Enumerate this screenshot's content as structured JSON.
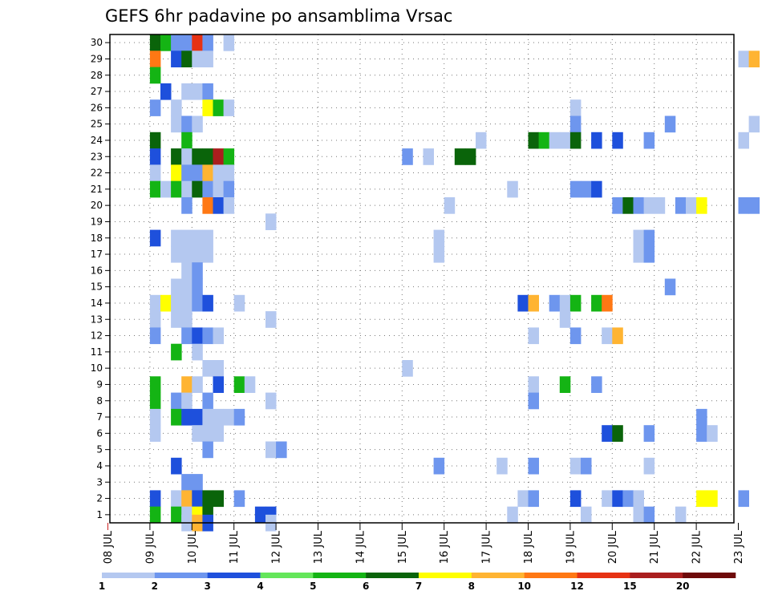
{
  "chart_data": {
    "type": "heatmap",
    "title": "GEFS 6hr padavine po ansamblima Vrsac",
    "xlabel": "",
    "ylabel": "",
    "x_tick_labels": [
      "08 JUL",
      "09 JUL",
      "10 JUL",
      "11 JUL",
      "12 JUL",
      "13 JUL",
      "14 JUL",
      "15 JUL",
      "16 JUL",
      "17 JUL",
      "18 JUL",
      "19 JUL",
      "20 JUL",
      "21 JUL",
      "22 JUL",
      "23 JUL"
    ],
    "y_tick_labels": [
      "1",
      "2",
      "3",
      "4",
      "5",
      "6",
      "7",
      "8",
      "9",
      "10",
      "11",
      "12",
      "13",
      "14",
      "15",
      "16",
      "17",
      "18",
      "19",
      "20",
      "21",
      "22",
      "23",
      "24",
      "25",
      "26",
      "27",
      "28",
      "29",
      "30"
    ],
    "members_range": [
      1,
      30
    ],
    "time_step_hours": 6,
    "grid": true,
    "legend": {
      "position": "bottom",
      "labels": [
        "1",
        "2",
        "3",
        "4",
        "5",
        "6",
        "7",
        "8",
        "10",
        "12",
        "15",
        "20"
      ],
      "colors": [
        "#b4c8f0",
        "#6e96ee",
        "#1e50dc",
        "#64e65a",
        "#14b414",
        "#0a640a",
        "#ffff00",
        "#ffb432",
        "#ff7814",
        "#e63214",
        "#aa1e1e",
        "#6e0a0a"
      ]
    },
    "cells": [
      {
        "m": 30,
        "t": "09 JUL 00Z",
        "v": 6
      },
      {
        "m": 30,
        "t": "09 JUL 06Z",
        "v": 5
      },
      {
        "m": 30,
        "t": "09 JUL 12Z",
        "v": 2
      },
      {
        "m": 30,
        "t": "09 JUL 18Z",
        "v": 2
      },
      {
        "m": 30,
        "t": "10 JUL 00Z",
        "v": 13
      },
      {
        "m": 30,
        "t": "10 JUL 06Z",
        "v": 2
      },
      {
        "m": 30,
        "t": "10 JUL 18Z",
        "v": 1
      },
      {
        "m": 29,
        "t": "09 JUL 00Z",
        "v": 10
      },
      {
        "m": 29,
        "t": "09 JUL 12Z",
        "v": 3
      },
      {
        "m": 29,
        "t": "09 JUL 18Z",
        "v": 6
      },
      {
        "m": 29,
        "t": "10 JUL 00Z",
        "v": 1
      },
      {
        "m": 29,
        "t": "10 JUL 06Z",
        "v": 1
      },
      {
        "m": 29,
        "t": "23 JUL 00Z",
        "v": 1
      },
      {
        "m": 29,
        "t": "23 JUL 06Z",
        "v": 8
      },
      {
        "m": 28,
        "t": "09 JUL 00Z",
        "v": 5
      },
      {
        "m": 27,
        "t": "09 JUL 06Z",
        "v": 3
      },
      {
        "m": 27,
        "t": "09 JUL 18Z",
        "v": 1
      },
      {
        "m": 27,
        "t": "10 JUL 00Z",
        "v": 1
      },
      {
        "m": 27,
        "t": "10 JUL 06Z",
        "v": 2
      },
      {
        "m": 26,
        "t": "09 JUL 00Z",
        "v": 2
      },
      {
        "m": 26,
        "t": "09 JUL 12Z",
        "v": 1
      },
      {
        "m": 26,
        "t": "10 JUL 06Z",
        "v": 7
      },
      {
        "m": 26,
        "t": "10 JUL 12Z",
        "v": 5
      },
      {
        "m": 26,
        "t": "10 JUL 18Z",
        "v": 1
      },
      {
        "m": 26,
        "t": "19 JUL 00Z",
        "v": 1
      },
      {
        "m": 25,
        "t": "09 JUL 12Z",
        "v": 1
      },
      {
        "m": 25,
        "t": "09 JUL 18Z",
        "v": 2
      },
      {
        "m": 25,
        "t": "10 JUL 00Z",
        "v": 1
      },
      {
        "m": 25,
        "t": "19 JUL 00Z",
        "v": 2
      },
      {
        "m": 25,
        "t": "21 JUL 06Z",
        "v": 2
      },
      {
        "m": 25,
        "t": "23 JUL 06Z",
        "v": 1
      },
      {
        "m": 24,
        "t": "09 JUL 00Z",
        "v": 6
      },
      {
        "m": 24,
        "t": "09 JUL 18Z",
        "v": 5
      },
      {
        "m": 24,
        "t": "16 JUL 18Z",
        "v": 1
      },
      {
        "m": 24,
        "t": "18 JUL 00Z",
        "v": 6
      },
      {
        "m": 24,
        "t": "18 JUL 06Z",
        "v": 5
      },
      {
        "m": 24,
        "t": "18 JUL 12Z",
        "v": 1
      },
      {
        "m": 24,
        "t": "18 JUL 18Z",
        "v": 1
      },
      {
        "m": 24,
        "t": "19 JUL 00Z",
        "v": 6
      },
      {
        "m": 24,
        "t": "19 JUL 12Z",
        "v": 3
      },
      {
        "m": 24,
        "t": "20 JUL 00Z",
        "v": 3
      },
      {
        "m": 24,
        "t": "20 JUL 18Z",
        "v": 2
      },
      {
        "m": 24,
        "t": "23 JUL 00Z",
        "v": 1
      },
      {
        "m": 23,
        "t": "09 JUL 00Z",
        "v": 3
      },
      {
        "m": 23,
        "t": "09 JUL 12Z",
        "v": 6
      },
      {
        "m": 23,
        "t": "09 JUL 18Z",
        "v": 1
      },
      {
        "m": 23,
        "t": "10 JUL 00Z",
        "v": 6
      },
      {
        "m": 23,
        "t": "10 JUL 06Z",
        "v": 6
      },
      {
        "m": 23,
        "t": "10 JUL 12Z",
        "v": 15
      },
      {
        "m": 23,
        "t": "10 JUL 18Z",
        "v": 5
      },
      {
        "m": 23,
        "t": "15 JUL 00Z",
        "v": 2
      },
      {
        "m": 23,
        "t": "15 JUL 12Z",
        "v": 1
      },
      {
        "m": 23,
        "t": "16 JUL 06Z",
        "v": 6
      },
      {
        "m": 23,
        "t": "16 JUL 12Z",
        "v": 6
      },
      {
        "m": 22,
        "t": "09 JUL 00Z",
        "v": 1
      },
      {
        "m": 22,
        "t": "09 JUL 12Z",
        "v": 7
      },
      {
        "m": 22,
        "t": "09 JUL 18Z",
        "v": 2
      },
      {
        "m": 22,
        "t": "10 JUL 00Z",
        "v": 2
      },
      {
        "m": 22,
        "t": "10 JUL 06Z",
        "v": 8
      },
      {
        "m": 22,
        "t": "10 JUL 12Z",
        "v": 1
      },
      {
        "m": 22,
        "t": "10 JUL 18Z",
        "v": 1
      },
      {
        "m": 21,
        "t": "09 JUL 00Z",
        "v": 5
      },
      {
        "m": 21,
        "t": "09 JUL 06Z",
        "v": 1
      },
      {
        "m": 21,
        "t": "09 JUL 12Z",
        "v": 5
      },
      {
        "m": 21,
        "t": "09 JUL 18Z",
        "v": 1
      },
      {
        "m": 21,
        "t": "10 JUL 00Z",
        "v": 6
      },
      {
        "m": 21,
        "t": "10 JUL 06Z",
        "v": 2
      },
      {
        "m": 21,
        "t": "10 JUL 12Z",
        "v": 1
      },
      {
        "m": 21,
        "t": "10 JUL 18Z",
        "v": 2
      },
      {
        "m": 21,
        "t": "17 JUL 12Z",
        "v": 1
      },
      {
        "m": 21,
        "t": "19 JUL 00Z",
        "v": 2
      },
      {
        "m": 21,
        "t": "19 JUL 06Z",
        "v": 2
      },
      {
        "m": 21,
        "t": "19 JUL 12Z",
        "v": 3
      },
      {
        "m": 20,
        "t": "09 JUL 18Z",
        "v": 2
      },
      {
        "m": 20,
        "t": "10 JUL 06Z",
        "v": 10
      },
      {
        "m": 20,
        "t": "10 JUL 12Z",
        "v": 3
      },
      {
        "m": 20,
        "t": "10 JUL 18Z",
        "v": 1
      },
      {
        "m": 20,
        "t": "16 JUL 00Z",
        "v": 1
      },
      {
        "m": 20,
        "t": "20 JUL 00Z",
        "v": 2
      },
      {
        "m": 20,
        "t": "20 JUL 06Z",
        "v": 6
      },
      {
        "m": 20,
        "t": "20 JUL 12Z",
        "v": 2
      },
      {
        "m": 20,
        "t": "20 JUL 18Z",
        "v": 1
      },
      {
        "m": 20,
        "t": "21 JUL 00Z",
        "v": 1
      },
      {
        "m": 20,
        "t": "21 JUL 12Z",
        "v": 2
      },
      {
        "m": 20,
        "t": "21 JUL 18Z",
        "v": 1
      },
      {
        "m": 20,
        "t": "22 JUL 00Z",
        "v": 7
      },
      {
        "m": 20,
        "t": "23 JUL 00Z",
        "v": 2
      },
      {
        "m": 20,
        "t": "23 JUL 06Z",
        "v": 2
      },
      {
        "m": 19,
        "t": "11 JUL 18Z",
        "v": 1
      },
      {
        "m": 18,
        "t": "09 JUL 00Z",
        "v": 3
      },
      {
        "m": 18,
        "t": "09 JUL 12Z",
        "v": 1
      },
      {
        "m": 18,
        "t": "09 JUL 18Z",
        "v": 1
      },
      {
        "m": 18,
        "t": "10 JUL 00Z",
        "v": 1
      },
      {
        "m": 18,
        "t": "10 JUL 06Z",
        "v": 1
      },
      {
        "m": 18,
        "t": "15 JUL 18Z",
        "v": 1
      },
      {
        "m": 18,
        "t": "20 JUL 12Z",
        "v": 1
      },
      {
        "m": 18,
        "t": "20 JUL 18Z",
        "v": 2
      },
      {
        "m": 17,
        "t": "09 JUL 12Z",
        "v": 1
      },
      {
        "m": 17,
        "t": "09 JUL 18Z",
        "v": 1
      },
      {
        "m": 17,
        "t": "10 JUL 00Z",
        "v": 1
      },
      {
        "m": 17,
        "t": "10 JUL 06Z",
        "v": 1
      },
      {
        "m": 17,
        "t": "15 JUL 18Z",
        "v": 1
      },
      {
        "m": 17,
        "t": "20 JUL 12Z",
        "v": 1
      },
      {
        "m": 17,
        "t": "20 JUL 18Z",
        "v": 2
      },
      {
        "m": 16,
        "t": "09 JUL 18Z",
        "v": 1
      },
      {
        "m": 16,
        "t": "10 JUL 00Z",
        "v": 2
      },
      {
        "m": 15,
        "t": "09 JUL 12Z",
        "v": 1
      },
      {
        "m": 15,
        "t": "09 JUL 18Z",
        "v": 1
      },
      {
        "m": 15,
        "t": "10 JUL 00Z",
        "v": 2
      },
      {
        "m": 15,
        "t": "21 JUL 06Z",
        "v": 2
      },
      {
        "m": 14,
        "t": "09 JUL 00Z",
        "v": 1
      },
      {
        "m": 14,
        "t": "09 JUL 06Z",
        "v": 7
      },
      {
        "m": 14,
        "t": "09 JUL 12Z",
        "v": 1
      },
      {
        "m": 14,
        "t": "09 JUL 18Z",
        "v": 1
      },
      {
        "m": 14,
        "t": "10 JUL 00Z",
        "v": 2
      },
      {
        "m": 14,
        "t": "10 JUL 06Z",
        "v": 3
      },
      {
        "m": 14,
        "t": "11 JUL 00Z",
        "v": 1
      },
      {
        "m": 14,
        "t": "17 JUL 18Z",
        "v": 3
      },
      {
        "m": 14,
        "t": "18 JUL 00Z",
        "v": 8
      },
      {
        "m": 14,
        "t": "18 JUL 12Z",
        "v": 2
      },
      {
        "m": 14,
        "t": "18 JUL 18Z",
        "v": 1
      },
      {
        "m": 14,
        "t": "19 JUL 00Z",
        "v": 5
      },
      {
        "m": 14,
        "t": "19 JUL 12Z",
        "v": 5
      },
      {
        "m": 14,
        "t": "19 JUL 18Z",
        "v": 10
      },
      {
        "m": 13,
        "t": "09 JUL 00Z",
        "v": 1
      },
      {
        "m": 13,
        "t": "09 JUL 12Z",
        "v": 1
      },
      {
        "m": 13,
        "t": "09 JUL 18Z",
        "v": 1
      },
      {
        "m": 13,
        "t": "11 JUL 18Z",
        "v": 1
      },
      {
        "m": 13,
        "t": "18 JUL 18Z",
        "v": 1
      },
      {
        "m": 12,
        "t": "09 JUL 00Z",
        "v": 2
      },
      {
        "m": 12,
        "t": "09 JUL 18Z",
        "v": 2
      },
      {
        "m": 12,
        "t": "10 JUL 00Z",
        "v": 3
      },
      {
        "m": 12,
        "t": "10 JUL 06Z",
        "v": 2
      },
      {
        "m": 12,
        "t": "10 JUL 12Z",
        "v": 1
      },
      {
        "m": 12,
        "t": "18 JUL 00Z",
        "v": 1
      },
      {
        "m": 12,
        "t": "19 JUL 00Z",
        "v": 2
      },
      {
        "m": 12,
        "t": "19 JUL 18Z",
        "v": 1
      },
      {
        "m": 12,
        "t": "20 JUL 00Z",
        "v": 8
      },
      {
        "m": 11,
        "t": "09 JUL 12Z",
        "v": 5
      },
      {
        "m": 11,
        "t": "10 JUL 00Z",
        "v": 1
      },
      {
        "m": 10,
        "t": "10 JUL 06Z",
        "v": 1
      },
      {
        "m": 10,
        "t": "10 JUL 12Z",
        "v": 1
      },
      {
        "m": 10,
        "t": "15 JUL 00Z",
        "v": 1
      },
      {
        "m": 9,
        "t": "09 JUL 00Z",
        "v": 5
      },
      {
        "m": 9,
        "t": "09 JUL 18Z",
        "v": 8
      },
      {
        "m": 9,
        "t": "10 JUL 00Z",
        "v": 1
      },
      {
        "m": 9,
        "t": "10 JUL 12Z",
        "v": 3
      },
      {
        "m": 9,
        "t": "11 JUL 00Z",
        "v": 5
      },
      {
        "m": 9,
        "t": "11 JUL 06Z",
        "v": 1
      },
      {
        "m": 9,
        "t": "18 JUL 00Z",
        "v": 1
      },
      {
        "m": 9,
        "t": "18 JUL 18Z",
        "v": 5
      },
      {
        "m": 9,
        "t": "19 JUL 12Z",
        "v": 2
      },
      {
        "m": 8,
        "t": "09 JUL 00Z",
        "v": 5
      },
      {
        "m": 8,
        "t": "09 JUL 12Z",
        "v": 2
      },
      {
        "m": 8,
        "t": "09 JUL 18Z",
        "v": 1
      },
      {
        "m": 8,
        "t": "10 JUL 06Z",
        "v": 2
      },
      {
        "m": 8,
        "t": "11 JUL 18Z",
        "v": 1
      },
      {
        "m": 8,
        "t": "18 JUL 00Z",
        "v": 2
      },
      {
        "m": 7,
        "t": "09 JUL 00Z",
        "v": 1
      },
      {
        "m": 7,
        "t": "09 JUL 12Z",
        "v": 5
      },
      {
        "m": 7,
        "t": "09 JUL 18Z",
        "v": 3
      },
      {
        "m": 7,
        "t": "10 JUL 00Z",
        "v": 3
      },
      {
        "m": 7,
        "t": "10 JUL 06Z",
        "v": 1
      },
      {
        "m": 7,
        "t": "10 JUL 12Z",
        "v": 1
      },
      {
        "m": 7,
        "t": "10 JUL 18Z",
        "v": 1
      },
      {
        "m": 7,
        "t": "11 JUL 00Z",
        "v": 2
      },
      {
        "m": 7,
        "t": "22 JUL 00Z",
        "v": 2
      },
      {
        "m": 6,
        "t": "09 JUL 00Z",
        "v": 1
      },
      {
        "m": 6,
        "t": "10 JUL 00Z",
        "v": 1
      },
      {
        "m": 6,
        "t": "10 JUL 06Z",
        "v": 1
      },
      {
        "m": 6,
        "t": "10 JUL 12Z",
        "v": 1
      },
      {
        "m": 6,
        "t": "19 JUL 18Z",
        "v": 3
      },
      {
        "m": 6,
        "t": "20 JUL 00Z",
        "v": 6
      },
      {
        "m": 6,
        "t": "20 JUL 18Z",
        "v": 2
      },
      {
        "m": 6,
        "t": "22 JUL 00Z",
        "v": 2
      },
      {
        "m": 6,
        "t": "22 JUL 06Z",
        "v": 1
      },
      {
        "m": 5,
        "t": "10 JUL 06Z",
        "v": 2
      },
      {
        "m": 5,
        "t": "11 JUL 18Z",
        "v": 1
      },
      {
        "m": 5,
        "t": "12 JUL 00Z",
        "v": 2
      },
      {
        "m": 4,
        "t": "09 JUL 12Z",
        "v": 3
      },
      {
        "m": 4,
        "t": "15 JUL 18Z",
        "v": 2
      },
      {
        "m": 4,
        "t": "17 JUL 06Z",
        "v": 1
      },
      {
        "m": 4,
        "t": "18 JUL 00Z",
        "v": 2
      },
      {
        "m": 4,
        "t": "19 JUL 00Z",
        "v": 1
      },
      {
        "m": 4,
        "t": "19 JUL 06Z",
        "v": 2
      },
      {
        "m": 4,
        "t": "20 JUL 18Z",
        "v": 1
      },
      {
        "m": 3,
        "t": "09 JUL 18Z",
        "v": 2
      },
      {
        "m": 3,
        "t": "10 JUL 00Z",
        "v": 2
      },
      {
        "m": 2,
        "t": "09 JUL 00Z",
        "v": 3
      },
      {
        "m": 2,
        "t": "09 JUL 12Z",
        "v": 1
      },
      {
        "m": 2,
        "t": "09 JUL 18Z",
        "v": 8
      },
      {
        "m": 2,
        "t": "10 JUL 00Z",
        "v": 3
      },
      {
        "m": 2,
        "t": "10 JUL 06Z",
        "v": 6
      },
      {
        "m": 2,
        "t": "10 JUL 12Z",
        "v": 6
      },
      {
        "m": 2,
        "t": "11 JUL 00Z",
        "v": 2
      },
      {
        "m": 2,
        "t": "17 JUL 18Z",
        "v": 1
      },
      {
        "m": 2,
        "t": "18 JUL 00Z",
        "v": 2
      },
      {
        "m": 2,
        "t": "19 JUL 00Z",
        "v": 3
      },
      {
        "m": 2,
        "t": "19 JUL 18Z",
        "v": 1
      },
      {
        "m": 2,
        "t": "20 JUL 00Z",
        "v": 3
      },
      {
        "m": 2,
        "t": "20 JUL 06Z",
        "v": 2
      },
      {
        "m": 2,
        "t": "20 JUL 12Z",
        "v": 1
      },
      {
        "m": 2,
        "t": "22 JUL 00Z",
        "v": 7
      },
      {
        "m": 2,
        "t": "22 JUL 06Z",
        "v": 7
      },
      {
        "m": 2,
        "t": "23 JUL 00Z",
        "v": 2
      },
      {
        "m": 1,
        "t": "09 JUL 00Z",
        "v": 5
      },
      {
        "m": 1,
        "t": "09 JUL 12Z",
        "v": 5
      },
      {
        "m": 1,
        "t": "09 JUL 18Z",
        "v": 1
      },
      {
        "m": 1,
        "t": "10 JUL 00Z",
        "v": 7
      },
      {
        "m": 1,
        "t": "10 JUL 06Z",
        "v": 6
      },
      {
        "m": 1,
        "t": "11 JUL 12Z",
        "v": 3
      },
      {
        "m": 1,
        "t": "11 JUL 18Z",
        "v": 3
      },
      {
        "m": 1,
        "t": "17 JUL 12Z",
        "v": 1
      },
      {
        "m": 1,
        "t": "19 JUL 06Z",
        "v": 1
      },
      {
        "m": 1,
        "t": "20 JUL 12Z",
        "v": 1
      },
      {
        "m": 1,
        "t": "20 JUL 18Z",
        "v": 2
      },
      {
        "m": 1,
        "t": "21 JUL 12Z",
        "v": 1
      },
      {
        "m": 0.5,
        "t": "09 JUL 18Z",
        "v": 1
      },
      {
        "m": 0.5,
        "t": "10 JUL 00Z",
        "v": 8
      },
      {
        "m": 0.5,
        "t": "10 JUL 06Z",
        "v": 3
      },
      {
        "m": 0.5,
        "t": "11 JUL 18Z",
        "v": 1
      }
    ]
  }
}
